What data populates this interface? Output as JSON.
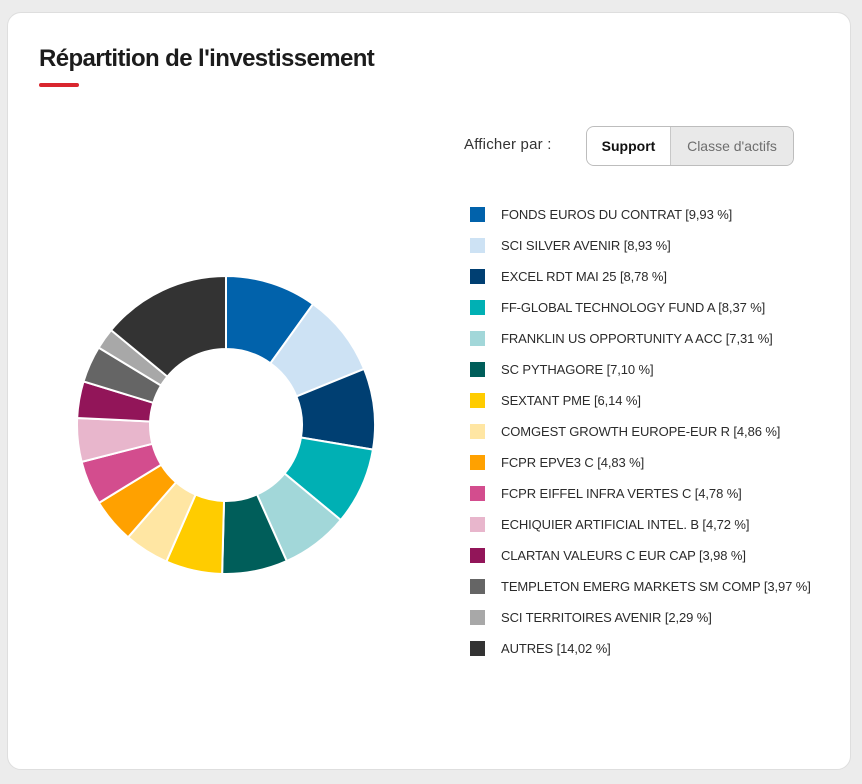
{
  "title": "Répartition de l'investissement",
  "filter": {
    "label": "Afficher par :",
    "options": [
      "Support",
      "Classe d'actifs"
    ],
    "selected": "Support"
  },
  "colors": {
    "accent": "#d9262e"
  },
  "chart_data": {
    "type": "pie",
    "variant": "donut",
    "title": "",
    "legend_position": "right",
    "slices": [
      {
        "label": "FONDS EUROS DU CONTRAT [9,93 %]",
        "value": 9.93,
        "color": "#0162ab"
      },
      {
        "label": "SCI SILVER AVENIR [8,93 %]",
        "value": 8.93,
        "color": "#cde2f4"
      },
      {
        "label": "EXCEL RDT MAI 25 [8,78 %]",
        "value": 8.78,
        "color": "#003f72"
      },
      {
        "label": "FF-GLOBAL TECHNOLOGY FUND A [8,37 %]",
        "value": 8.37,
        "color": "#00b0b4"
      },
      {
        "label": "FRANKLIN US OPPORTUNITY A ACC [7,31 %]",
        "value": 7.31,
        "color": "#a2d7d9"
      },
      {
        "label": "SC PYTHAGORE [7,10 %]",
        "value": 7.1,
        "color": "#005e5a"
      },
      {
        "label": "SEXTANT PME [6,14 %]",
        "value": 6.14,
        "color": "#ffcc00"
      },
      {
        "label": "COMGEST GROWTH EUROPE-EUR R [4,86 %]",
        "value": 4.86,
        "color": "#ffe6a3"
      },
      {
        "label": "FCPR EPVE3 C [4,83 %]",
        "value": 4.83,
        "color": "#ffa100"
      },
      {
        "label": "FCPR EIFFEL INFRA VERTES C [4,78 %]",
        "value": 4.78,
        "color": "#d34d8e"
      },
      {
        "label": "ECHIQUIER ARTIFICIAL INTEL. B [4,72 %]",
        "value": 4.72,
        "color": "#e8b6cc"
      },
      {
        "label": "CLARTAN VALEURS C EUR CAP [3,98 %]",
        "value": 3.98,
        "color": "#921559"
      },
      {
        "label": "TEMPLETON EMERG MARKETS SM COMP [3,97 %]",
        "value": 3.97,
        "color": "#656565"
      },
      {
        "label": "SCI TERRITOIRES AVENIR [2,29 %]",
        "value": 2.29,
        "color": "#a8a8a8"
      },
      {
        "label": "AUTRES [14,02 %]",
        "value": 14.02,
        "color": "#333333"
      }
    ]
  }
}
